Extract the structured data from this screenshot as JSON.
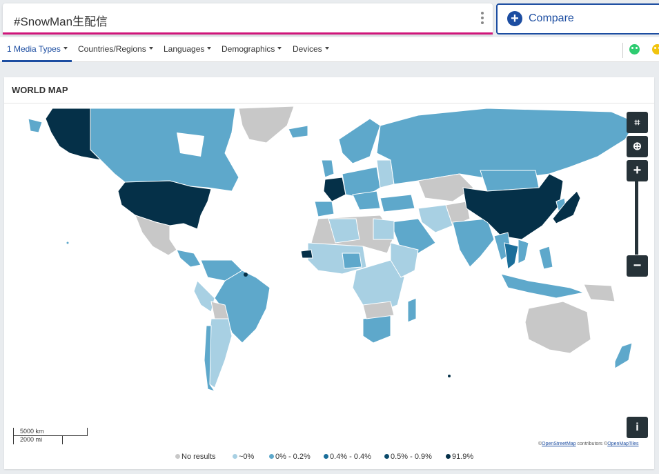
{
  "search": {
    "query": "#SnowMan生配信"
  },
  "compare": {
    "label": "Compare"
  },
  "filters": [
    {
      "label": "1 Media Types"
    },
    {
      "label": "Countries/Regions"
    },
    {
      "label": "Languages"
    },
    {
      "label": "Demographics"
    },
    {
      "label": "Devices"
    }
  ],
  "card": {
    "title": "WORLD MAP"
  },
  "map_controls": {
    "crop_icon": "crop-icon",
    "locate_icon": "crosshair-icon",
    "zoom_in": "+",
    "zoom_out": "−",
    "info": "i"
  },
  "scale_bar": {
    "metric": "5000 km",
    "imperial": "2000 mi"
  },
  "attribution": {
    "prefix": "©",
    "osm": "OpenStreetMap",
    "contributors": " contributors ",
    "prefix2": "©",
    "omt": "OpenMapTiles"
  },
  "legend": [
    {
      "label": "No results",
      "color": "#c8c8c8"
    },
    {
      "label": "~0%",
      "color": "#a8d0e3"
    },
    {
      "label": "0% - 0.2%",
      "color": "#5ea8cb"
    },
    {
      "label": "0.4% - 0.4%",
      "color": "#1a6e9a"
    },
    {
      "label": "0.5% - 0.9%",
      "color": "#0b4a6b"
    },
    {
      "label": "91.9%",
      "color": "#053048"
    }
  ],
  "colors": {
    "accent": "#1c4da1",
    "search_underline": "#d0157a",
    "ocean": "#ffffff"
  }
}
